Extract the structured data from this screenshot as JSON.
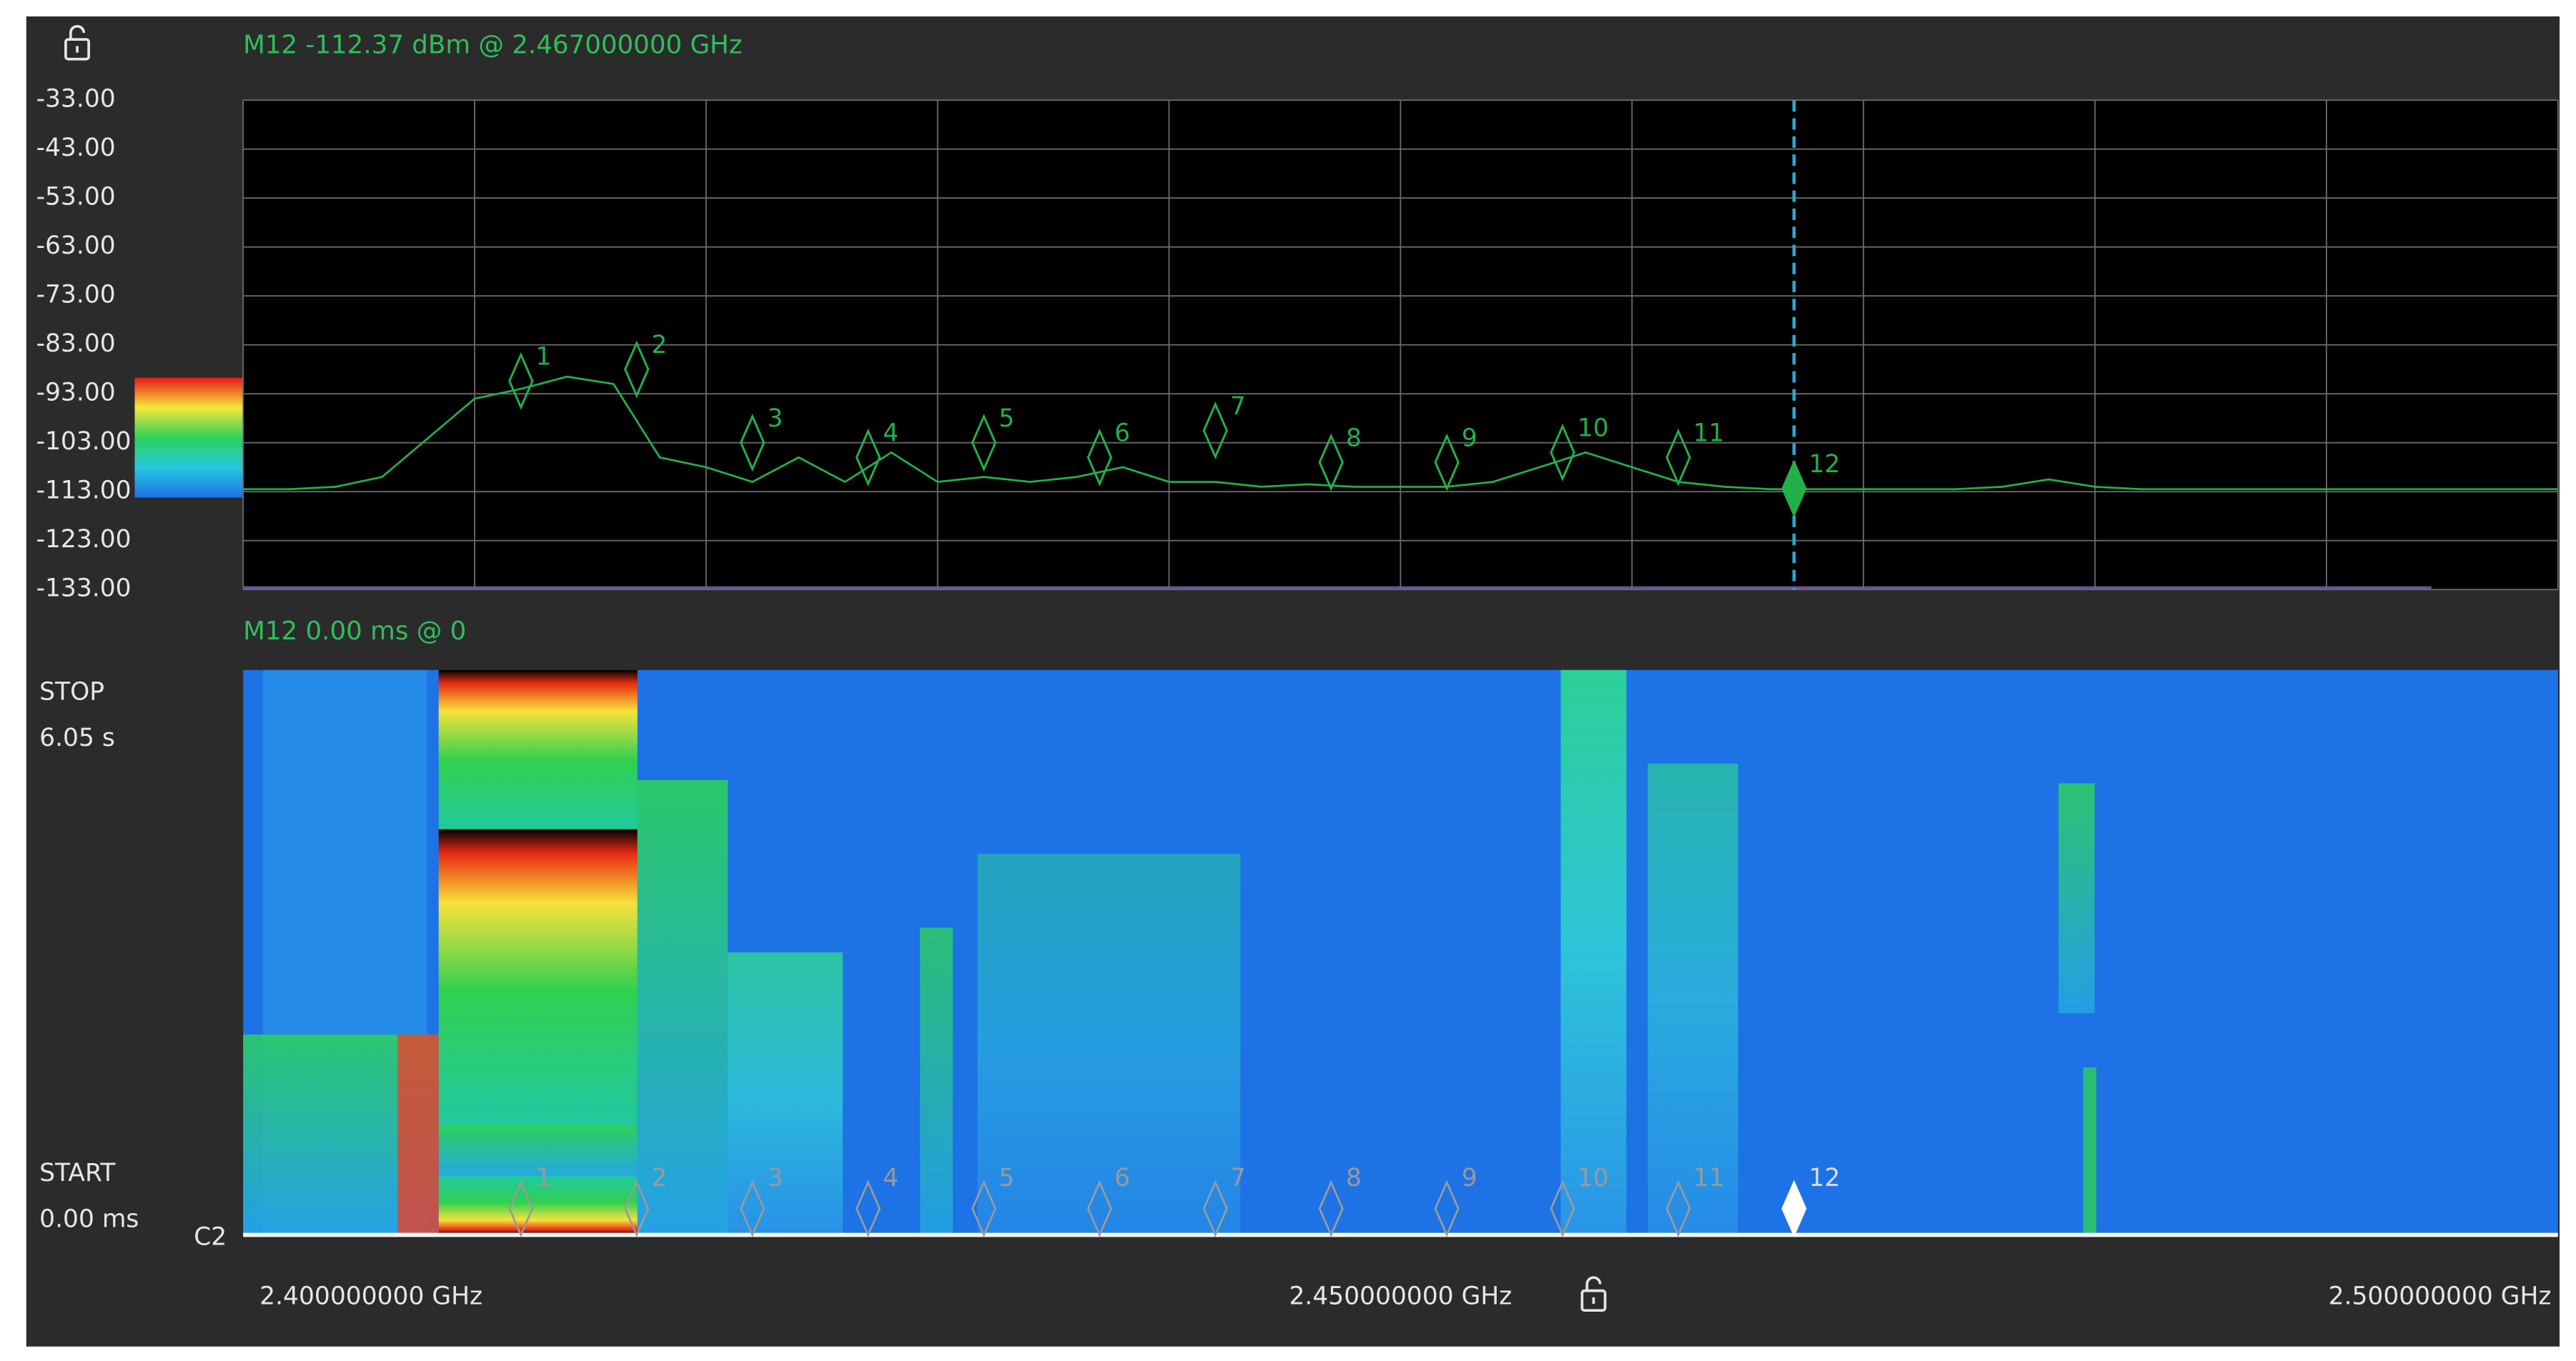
{
  "marker_readout": "M12  -112.37 dBm @ 2.467000000 GHz",
  "waterfall_readout": "M12  0.00 ms @ 0",
  "waterfall": {
    "stop_label": "STOP",
    "stop_value": "6.05 s",
    "start_label": "START",
    "start_value": "0.00 ms",
    "channel": "C2"
  },
  "chart_data": {
    "type": "line",
    "xlim": [
      2.4,
      2.5
    ],
    "ylim": [
      -133,
      -33
    ],
    "yticks": [
      {
        "value": -33,
        "label": "-33.00"
      },
      {
        "value": -43,
        "label": "-43.00"
      },
      {
        "value": -53,
        "label": "-53.00"
      },
      {
        "value": -63,
        "label": "-63.00"
      },
      {
        "value": -73,
        "label": "-73.00"
      },
      {
        "value": -83,
        "label": "-83.00"
      },
      {
        "value": -93,
        "label": "-93.00"
      },
      {
        "value": -103,
        "label": "-103.00"
      },
      {
        "value": -113,
        "label": "-113.00"
      },
      {
        "value": -123,
        "label": "-123.00"
      },
      {
        "value": -133,
        "label": "-133.00"
      }
    ],
    "xticks": [
      {
        "value": 2.4,
        "label": "2.400000000 GHz"
      },
      {
        "value": 2.45,
        "label": "2.450000000 GHz"
      },
      {
        "value": 2.5,
        "label": "2.500000000 GHz"
      }
    ],
    "xgrid": [
      2.4,
      2.41,
      2.42,
      2.43,
      2.44,
      2.45,
      2.46,
      2.47,
      2.48,
      2.49,
      2.5
    ],
    "grid": true,
    "series": [
      {
        "color": "#22b04a",
        "x": [
          2.4,
          2.402,
          2.404,
          2.406,
          2.408,
          2.41,
          2.412,
          2.414,
          2.416,
          2.418,
          2.42,
          2.422,
          2.424,
          2.426,
          2.428,
          2.43,
          2.432,
          2.434,
          2.436,
          2.438,
          2.44,
          2.442,
          2.444,
          2.446,
          2.448,
          2.45,
          2.452,
          2.454,
          2.456,
          2.458,
          2.46,
          2.462,
          2.464,
          2.466,
          2.468,
          2.47,
          2.472,
          2.474,
          2.476,
          2.478,
          2.48,
          2.482,
          2.484,
          2.486,
          2.488,
          2.49,
          2.492,
          2.494,
          2.496,
          2.498,
          2.5
        ],
        "values": [
          -112.5,
          -112.5,
          -112,
          -110,
          -102,
          -94,
          -92,
          -89.5,
          -91,
          -106,
          -108,
          -111,
          -106,
          -111,
          -105,
          -111,
          -110,
          -111,
          -110,
          -108,
          -111,
          -111,
          -112,
          -111.5,
          -112,
          -112,
          -112,
          -111,
          -108,
          -105,
          -108,
          -111,
          -112,
          -112.5,
          -112.5,
          -112.5,
          -112.5,
          -112.5,
          -112,
          -110.5,
          -112,
          -112.5,
          -112.5,
          -112.5,
          -112.5,
          -112.5,
          -112.5,
          -112.5,
          -112.5,
          -112.5,
          -112.5
        ]
      }
    ],
    "markers": [
      {
        "label": "1",
        "freq": 2.412,
        "level": -90.4
      },
      {
        "label": "2",
        "freq": 2.417,
        "level": -88
      },
      {
        "label": "3",
        "freq": 2.422,
        "level": -103
      },
      {
        "label": "4",
        "freq": 2.427,
        "level": -106
      },
      {
        "label": "5",
        "freq": 2.432,
        "level": -103
      },
      {
        "label": "6",
        "freq": 2.437,
        "level": -106
      },
      {
        "label": "7",
        "freq": 2.442,
        "level": -100.5
      },
      {
        "label": "8",
        "freq": 2.447,
        "level": -107
      },
      {
        "label": "9",
        "freq": 2.452,
        "level": -107
      },
      {
        "label": "10",
        "freq": 2.457,
        "level": -105
      },
      {
        "label": "11",
        "freq": 2.462,
        "level": -106
      },
      {
        "label": "12",
        "freq": 2.467,
        "level": -112.37,
        "selected": true
      }
    ]
  }
}
